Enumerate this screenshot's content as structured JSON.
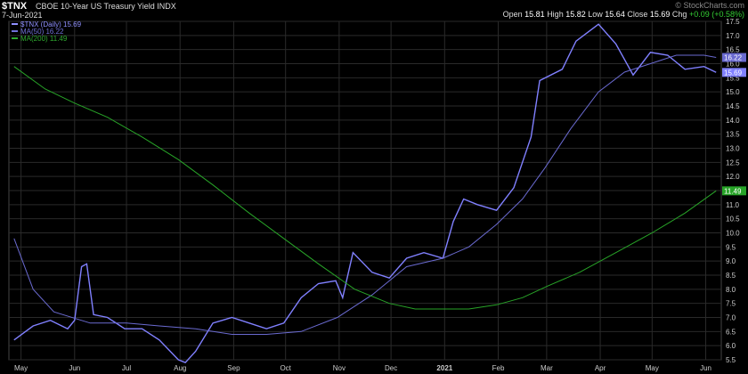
{
  "header": {
    "symbol": "$TNX",
    "description": "CBOE 10-Year US Treasury Yield",
    "exchange": "INDX",
    "date": "7-Jun-2021",
    "credit": "© StockCharts.com",
    "open_label": "Open",
    "open": "15.81",
    "high_label": "High",
    "high": "15.82",
    "low_label": "Low",
    "low": "15.64",
    "close_label": "Close",
    "close": "15.69",
    "chg_label": "Chg",
    "chg": "+0.09 (+0.58%)"
  },
  "legend": [
    {
      "label": "$TNX (Daily) 15.69",
      "color": "#9090ff"
    },
    {
      "label": "MA(50) 16.22",
      "color": "#7070d8"
    },
    {
      "label": "MA(200) 11.49",
      "color": "#2faa2f"
    }
  ],
  "colors": {
    "price": "#8080ff",
    "ma50": "#6a6ad0",
    "ma200": "#28a428",
    "grid": "#2a2a2a",
    "axis_text": "#cccccc"
  },
  "chart_data": {
    "type": "line",
    "ylim": [
      5.5,
      17.5
    ],
    "yticks": [
      "5.5",
      "6.0",
      "6.5",
      "7.0",
      "7.5",
      "8.0",
      "8.5",
      "9.0",
      "9.5",
      "10.0",
      "10.5",
      "11.0",
      "11.5",
      "12.0",
      "12.5",
      "13.0",
      "13.5",
      "14.0",
      "14.5",
      "15.0",
      "15.5",
      "16.0",
      "16.5",
      "17.0",
      "17.5"
    ],
    "xticks": [
      {
        "label": "May",
        "date": "2020-05-01"
      },
      {
        "label": "Jun",
        "date": "2020-06-01"
      },
      {
        "label": "Jul",
        "date": "2020-07-01"
      },
      {
        "label": "Aug",
        "date": "2020-08-01"
      },
      {
        "label": "Sep",
        "date": "2020-09-01"
      },
      {
        "label": "Oct",
        "date": "2020-10-01"
      },
      {
        "label": "Nov",
        "date": "2020-11-01"
      },
      {
        "label": "Dec",
        "date": "2020-12-01"
      },
      {
        "label": "2021",
        "date": "2021-01-01"
      },
      {
        "label": "Feb",
        "date": "2021-02-01"
      },
      {
        "label": "Mar",
        "date": "2021-03-01"
      },
      {
        "label": "Apr",
        "date": "2021-04-01"
      },
      {
        "label": "May",
        "date": "2021-05-01"
      },
      {
        "label": "Jun",
        "date": "2021-06-01"
      }
    ],
    "price_labels": [
      {
        "value": 16.22,
        "text": "16.22",
        "color": "#6a6ad0"
      },
      {
        "value": 15.69,
        "text": "15.69",
        "color": "#8080ff"
      },
      {
        "value": 11.49,
        "text": "11.49",
        "color": "#28a428"
      }
    ],
    "series": [
      {
        "name": "$TNX (Daily) 15.69",
        "dates": [
          "2020-04-27",
          "2020-05-08",
          "2020-05-18",
          "2020-05-28",
          "2020-06-01",
          "2020-06-05",
          "2020-06-08",
          "2020-06-12",
          "2020-06-20",
          "2020-06-30",
          "2020-07-10",
          "2020-07-20",
          "2020-07-31",
          "2020-08-04",
          "2020-08-10",
          "2020-08-20",
          "2020-08-31",
          "2020-09-10",
          "2020-09-20",
          "2020-09-30",
          "2020-10-10",
          "2020-10-20",
          "2020-10-30",
          "2020-11-03",
          "2020-11-09",
          "2020-11-20",
          "2020-11-30",
          "2020-12-10",
          "2020-12-20",
          "2020-12-31",
          "2021-01-06",
          "2021-01-12",
          "2021-01-20",
          "2021-01-31",
          "2021-02-10",
          "2021-02-20",
          "2021-02-25",
          "2021-03-10",
          "2021-03-18",
          "2021-03-31",
          "2021-04-10",
          "2021-04-20",
          "2021-04-30",
          "2021-05-10",
          "2021-05-20",
          "2021-05-31",
          "2021-06-07"
        ],
        "values": [
          6.2,
          6.7,
          6.9,
          6.6,
          6.9,
          8.8,
          8.9,
          7.1,
          7.0,
          6.6,
          6.6,
          6.2,
          5.5,
          5.4,
          5.8,
          6.8,
          7.0,
          6.8,
          6.6,
          6.8,
          7.7,
          8.2,
          8.3,
          7.7,
          9.3,
          8.6,
          8.4,
          9.1,
          9.3,
          9.1,
          10.4,
          11.2,
          11.0,
          10.8,
          11.6,
          13.4,
          15.4,
          15.8,
          16.8,
          17.4,
          16.7,
          15.6,
          16.4,
          16.3,
          15.8,
          15.9,
          15.69
        ]
      },
      {
        "name": "MA(50) 16.22",
        "dates": [
          "2020-04-27",
          "2020-05-08",
          "2020-05-20",
          "2020-06-10",
          "2020-07-01",
          "2020-07-20",
          "2020-08-10",
          "2020-08-31",
          "2020-09-20",
          "2020-10-10",
          "2020-10-31",
          "2020-11-20",
          "2020-12-10",
          "2020-12-31",
          "2021-01-15",
          "2021-01-31",
          "2021-02-15",
          "2021-02-28",
          "2021-03-15",
          "2021-03-31",
          "2021-04-15",
          "2021-04-30",
          "2021-05-15",
          "2021-05-31",
          "2021-06-07"
        ],
        "values": [
          9.8,
          8.0,
          7.2,
          6.8,
          6.8,
          6.7,
          6.6,
          6.4,
          6.4,
          6.5,
          7.0,
          7.8,
          8.8,
          9.1,
          9.5,
          10.3,
          11.2,
          12.3,
          13.7,
          15.0,
          15.7,
          16.0,
          16.3,
          16.3,
          16.22
        ]
      },
      {
        "name": "MA(200) 11.49",
        "dates": [
          "2020-04-27",
          "2020-05-15",
          "2020-06-01",
          "2020-06-20",
          "2020-07-10",
          "2020-07-31",
          "2020-08-20",
          "2020-09-10",
          "2020-09-30",
          "2020-10-20",
          "2020-11-10",
          "2020-11-30",
          "2020-12-15",
          "2020-12-31",
          "2021-01-15",
          "2021-01-31",
          "2021-02-15",
          "2021-03-01",
          "2021-03-20",
          "2021-04-10",
          "2021-05-01",
          "2021-05-20",
          "2021-06-07"
        ],
        "values": [
          15.9,
          15.1,
          14.6,
          14.1,
          13.4,
          12.6,
          11.7,
          10.7,
          9.8,
          8.9,
          8.0,
          7.5,
          7.3,
          7.3,
          7.3,
          7.45,
          7.7,
          8.1,
          8.6,
          9.3,
          10.0,
          10.7,
          11.49
        ]
      }
    ]
  }
}
